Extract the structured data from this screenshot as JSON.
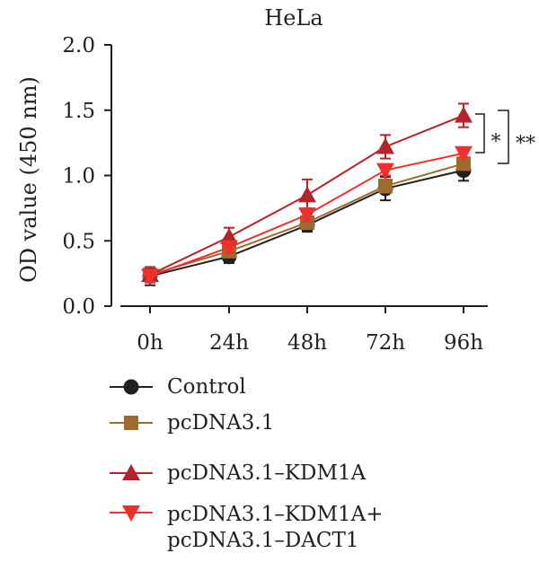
{
  "chart_data": {
    "type": "line",
    "title": "HeLa",
    "xlabel": "",
    "ylabel": "OD value (450 nm)",
    "categories": [
      "0h",
      "24h",
      "48h",
      "72h",
      "96h"
    ],
    "ylim": [
      0.0,
      2.0
    ],
    "yticks": [
      "0.0",
      "0.5",
      "1.0",
      "1.5",
      "2.0"
    ],
    "grid": false,
    "legend_position": "bottom",
    "series": [
      {
        "name": "Control",
        "color": "#231f20",
        "marker": "circle",
        "values": [
          0.23,
          0.38,
          0.62,
          0.9,
          1.04
        ],
        "errors": [
          0.07,
          0.05,
          0.05,
          0.09,
          0.08
        ]
      },
      {
        "name": "pcDNA3.1",
        "color": "#9c6b2d",
        "marker": "square",
        "values": [
          0.24,
          0.42,
          0.64,
          0.92,
          1.09
        ],
        "errors": [
          0.06,
          0.04,
          0.05,
          0.05,
          0.04
        ]
      },
      {
        "name": "pcDNA3.1–KDM1A",
        "color": "#b5232b",
        "marker": "triangle-up",
        "values": [
          0.24,
          0.53,
          0.85,
          1.22,
          1.46
        ],
        "errors": [
          0.05,
          0.07,
          0.12,
          0.09,
          0.09
        ]
      },
      {
        "name": "pcDNA3.1–KDM1A+\npcDNA3.1–DACT1",
        "color": "#ec2f2f",
        "marker": "triangle-down",
        "values": [
          0.23,
          0.45,
          0.7,
          1.04,
          1.17
        ],
        "errors": [
          0.04,
          0.04,
          0.05,
          0.04,
          0.03
        ]
      }
    ],
    "annotations": [
      "*",
      "**"
    ]
  },
  "legend": {
    "items": [
      {
        "label": "Control"
      },
      {
        "label": "pcDNA3.1"
      },
      {
        "label": "pcDNA3.1–KDM1A"
      },
      {
        "line1": "pcDNA3.1–KDM1A+",
        "line2": "pcDNA3.1–DACT1"
      }
    ]
  }
}
